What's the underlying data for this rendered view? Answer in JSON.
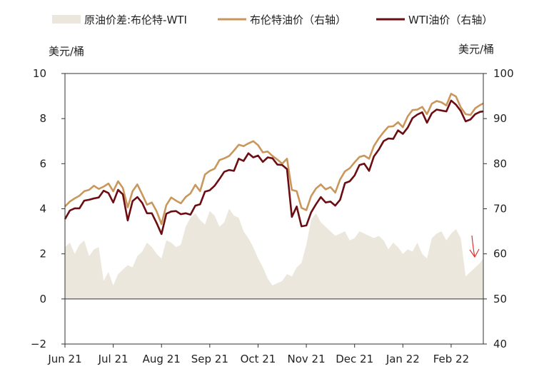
{
  "chart_data": {
    "type": "area",
    "title": "",
    "legend": {
      "placement": "top",
      "entries": [
        "原油价差:布伦特-WTI",
        "布伦特油价（右轴）",
        "WTI油价（右轴）"
      ]
    },
    "left_axis": {
      "unit": "美元/桶",
      "range": [
        -2,
        10
      ],
      "ticks": [
        "−2",
        "0",
        "2",
        "4",
        "6",
        "8",
        "10"
      ]
    },
    "right_axis": {
      "unit": "美元/桶",
      "range": [
        40,
        100
      ],
      "ticks": [
        "40",
        "50",
        "60",
        "70",
        "80",
        "90",
        "100"
      ]
    },
    "x_axis": {
      "ticks": [
        "Jun 21",
        "Jul 21",
        "Aug 21",
        "Sep 21",
        "Oct 21",
        "Nov 21",
        "Dec 21",
        "Jan 22",
        "Feb 22"
      ]
    },
    "x_days_per_month": 30,
    "grid": false,
    "colors": {
      "spread": "#ebe7dc",
      "brent": "#c9975b",
      "wti": "#6b0d12",
      "arrow": "#e03030"
    },
    "series": [
      {
        "name": "原油价差:布伦特-WTI",
        "axis": "left",
        "type": "area",
        "x": [
          0,
          3,
          6,
          9,
          12,
          15,
          18,
          21,
          24,
          27,
          30,
          33,
          36,
          39,
          42,
          45,
          48,
          51,
          54,
          57,
          60,
          63,
          66,
          69,
          72,
          75,
          78,
          81,
          84,
          87,
          90,
          93,
          96,
          99,
          102,
          105,
          108,
          111,
          114,
          117,
          120,
          123,
          126,
          129,
          132,
          135,
          138,
          141,
          144,
          147,
          150,
          153,
          156,
          159,
          162,
          165,
          168,
          171,
          174,
          177,
          180,
          183,
          186,
          189,
          192,
          195,
          198,
          201,
          204,
          207,
          210,
          213,
          216,
          219,
          222,
          225,
          228,
          231,
          234,
          237,
          240,
          243,
          246,
          249,
          252,
          255,
          258,
          260
        ],
        "values": [
          2.3,
          2.5,
          2.0,
          2.4,
          2.6,
          1.9,
          2.2,
          2.3,
          0.8,
          1.2,
          0.6,
          1.1,
          1.3,
          1.5,
          1.4,
          1.9,
          2.1,
          2.5,
          2.3,
          2.0,
          1.8,
          2.6,
          2.5,
          2.3,
          2.4,
          3.2,
          3.6,
          3.8,
          3.5,
          3.3,
          3.9,
          3.7,
          3.2,
          3.4,
          4.0,
          3.7,
          3.6,
          3.0,
          2.7,
          2.3,
          1.8,
          1.4,
          0.9,
          0.6,
          0.7,
          0.8,
          1.1,
          1.0,
          1.4,
          1.6,
          2.4,
          3.5,
          3.8,
          3.4,
          3.2,
          3.0,
          2.8,
          2.9,
          3.0,
          2.6,
          2.7,
          3.0,
          2.9,
          2.8,
          2.7,
          2.8,
          2.6,
          2.2,
          2.5,
          2.3,
          2.0,
          2.2,
          2.1,
          2.5,
          2.0,
          1.8,
          2.7,
          2.9,
          3.0,
          2.6,
          2.9,
          3.1,
          2.7,
          1.0,
          1.2,
          1.4,
          1.6,
          1.8
        ]
      },
      {
        "name": "布伦特油价（右轴）",
        "axis": "right",
        "type": "line",
        "x": [
          0,
          3,
          6,
          9,
          12,
          15,
          18,
          21,
          24,
          27,
          30,
          33,
          36,
          39,
          42,
          45,
          48,
          51,
          54,
          57,
          60,
          63,
          66,
          69,
          72,
          75,
          78,
          81,
          84,
          87,
          90,
          93,
          96,
          99,
          102,
          105,
          108,
          111,
          114,
          117,
          120,
          123,
          126,
          129,
          132,
          135,
          138,
          141,
          144,
          147,
          150,
          153,
          156,
          159,
          162,
          165,
          168,
          171,
          174,
          177,
          180,
          183,
          186,
          189,
          192,
          195,
          198,
          201,
          204,
          207,
          210,
          213,
          216,
          219,
          222,
          225,
          228,
          231,
          234,
          237,
          240,
          243,
          246,
          249,
          252,
          255,
          258,
          260
        ],
        "values": [
          70.5,
          71.6,
          72.3,
          72.9,
          73.9,
          74.2,
          75.1,
          74.4,
          74.9,
          75.6,
          73.9,
          76.1,
          74.6,
          70.3,
          73.9,
          75.4,
          73.2,
          70.9,
          71.4,
          69.4,
          66.6,
          70.8,
          72.5,
          71.8,
          71.2,
          72.6,
          73.4,
          75.3,
          73.9,
          77.6,
          78.4,
          78.9,
          80.8,
          81.2,
          81.7,
          82.9,
          84.2,
          83.9,
          84.5,
          85.0,
          84.1,
          82.5,
          82.7,
          81.7,
          80.9,
          80.0,
          81.1,
          74.2,
          73.9,
          70.2,
          69.7,
          72.8,
          74.5,
          75.4,
          74.3,
          74.8,
          73.6,
          76.5,
          78.3,
          79.0,
          80.3,
          81.5,
          81.8,
          81.1,
          83.9,
          85.6,
          87.0,
          88.2,
          88.3,
          89.2,
          88.1,
          90.5,
          91.9,
          92.0,
          92.6,
          91.0,
          93.3,
          93.9,
          93.6,
          92.9,
          95.5,
          94.9,
          92.5,
          91.0,
          90.8,
          92.3,
          93.0,
          93.4
        ]
      },
      {
        "name": "WTI油价（右轴）",
        "axis": "right",
        "type": "line",
        "x": [
          0,
          3,
          6,
          9,
          12,
          15,
          18,
          21,
          24,
          27,
          30,
          33,
          36,
          39,
          42,
          45,
          48,
          51,
          54,
          57,
          60,
          63,
          66,
          69,
          72,
          75,
          78,
          81,
          84,
          87,
          90,
          93,
          96,
          99,
          102,
          105,
          108,
          111,
          114,
          117,
          120,
          123,
          126,
          129,
          132,
          135,
          138,
          141,
          144,
          147,
          150,
          153,
          156,
          159,
          162,
          165,
          168,
          171,
          174,
          177,
          180,
          183,
          186,
          189,
          192,
          195,
          198,
          201,
          204,
          207,
          210,
          213,
          216,
          219,
          222,
          225,
          228,
          231,
          234,
          237,
          240,
          243,
          246,
          249,
          252,
          255,
          258,
          260
        ],
        "values": [
          67.7,
          69.6,
          70.1,
          70.1,
          71.8,
          72.0,
          72.3,
          72.5,
          74.0,
          73.5,
          71.4,
          74.2,
          73.2,
          67.4,
          71.7,
          72.6,
          71.3,
          69.0,
          69.0,
          66.8,
          64.4,
          68.9,
          69.4,
          69.5,
          68.8,
          69.0,
          68.7,
          70.7,
          71.0,
          73.8,
          74.1,
          75.1,
          76.6,
          78.2,
          78.6,
          78.4,
          81.1,
          80.6,
          82.3,
          81.4,
          81.8,
          80.4,
          81.4,
          81.2,
          79.8,
          79.7,
          78.8,
          68.2,
          70.5,
          66.1,
          66.3,
          69.2,
          71.0,
          72.6,
          71.4,
          71.6,
          70.7,
          72.0,
          75.7,
          76.1,
          77.4,
          79.7,
          80.0,
          78.4,
          81.6,
          83.1,
          85.0,
          85.6,
          85.5,
          87.4,
          86.6,
          88.0,
          90.1,
          90.9,
          91.4,
          89.1,
          91.2,
          92.0,
          91.8,
          91.6,
          94.0,
          93.1,
          91.7,
          89.4,
          89.8,
          91.0,
          91.5,
          91.6
        ]
      }
    ]
  }
}
